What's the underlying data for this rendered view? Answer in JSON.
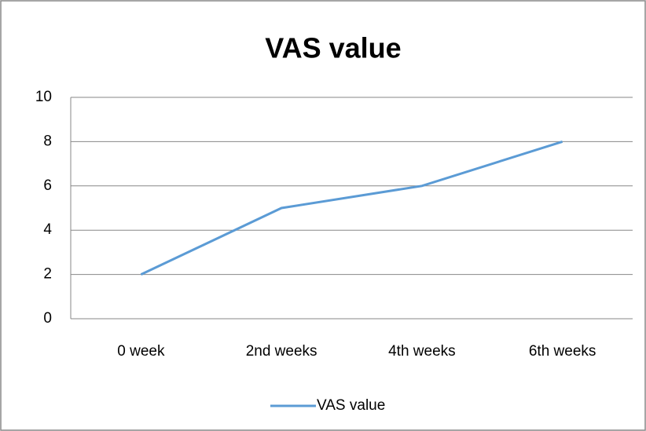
{
  "chart_data": {
    "type": "line",
    "title": "VAS value",
    "categories": [
      "0 week",
      "2nd weeks",
      "4th weeks",
      "6th weeks"
    ],
    "series": [
      {
        "name": "VAS value",
        "color": "#5b9bd5",
        "values": [
          2,
          5,
          6,
          8
        ]
      }
    ],
    "ylim": [
      0,
      10
    ],
    "yticks": [
      0,
      2,
      4,
      6,
      8,
      10
    ],
    "grid": true,
    "legend": "bottom"
  }
}
